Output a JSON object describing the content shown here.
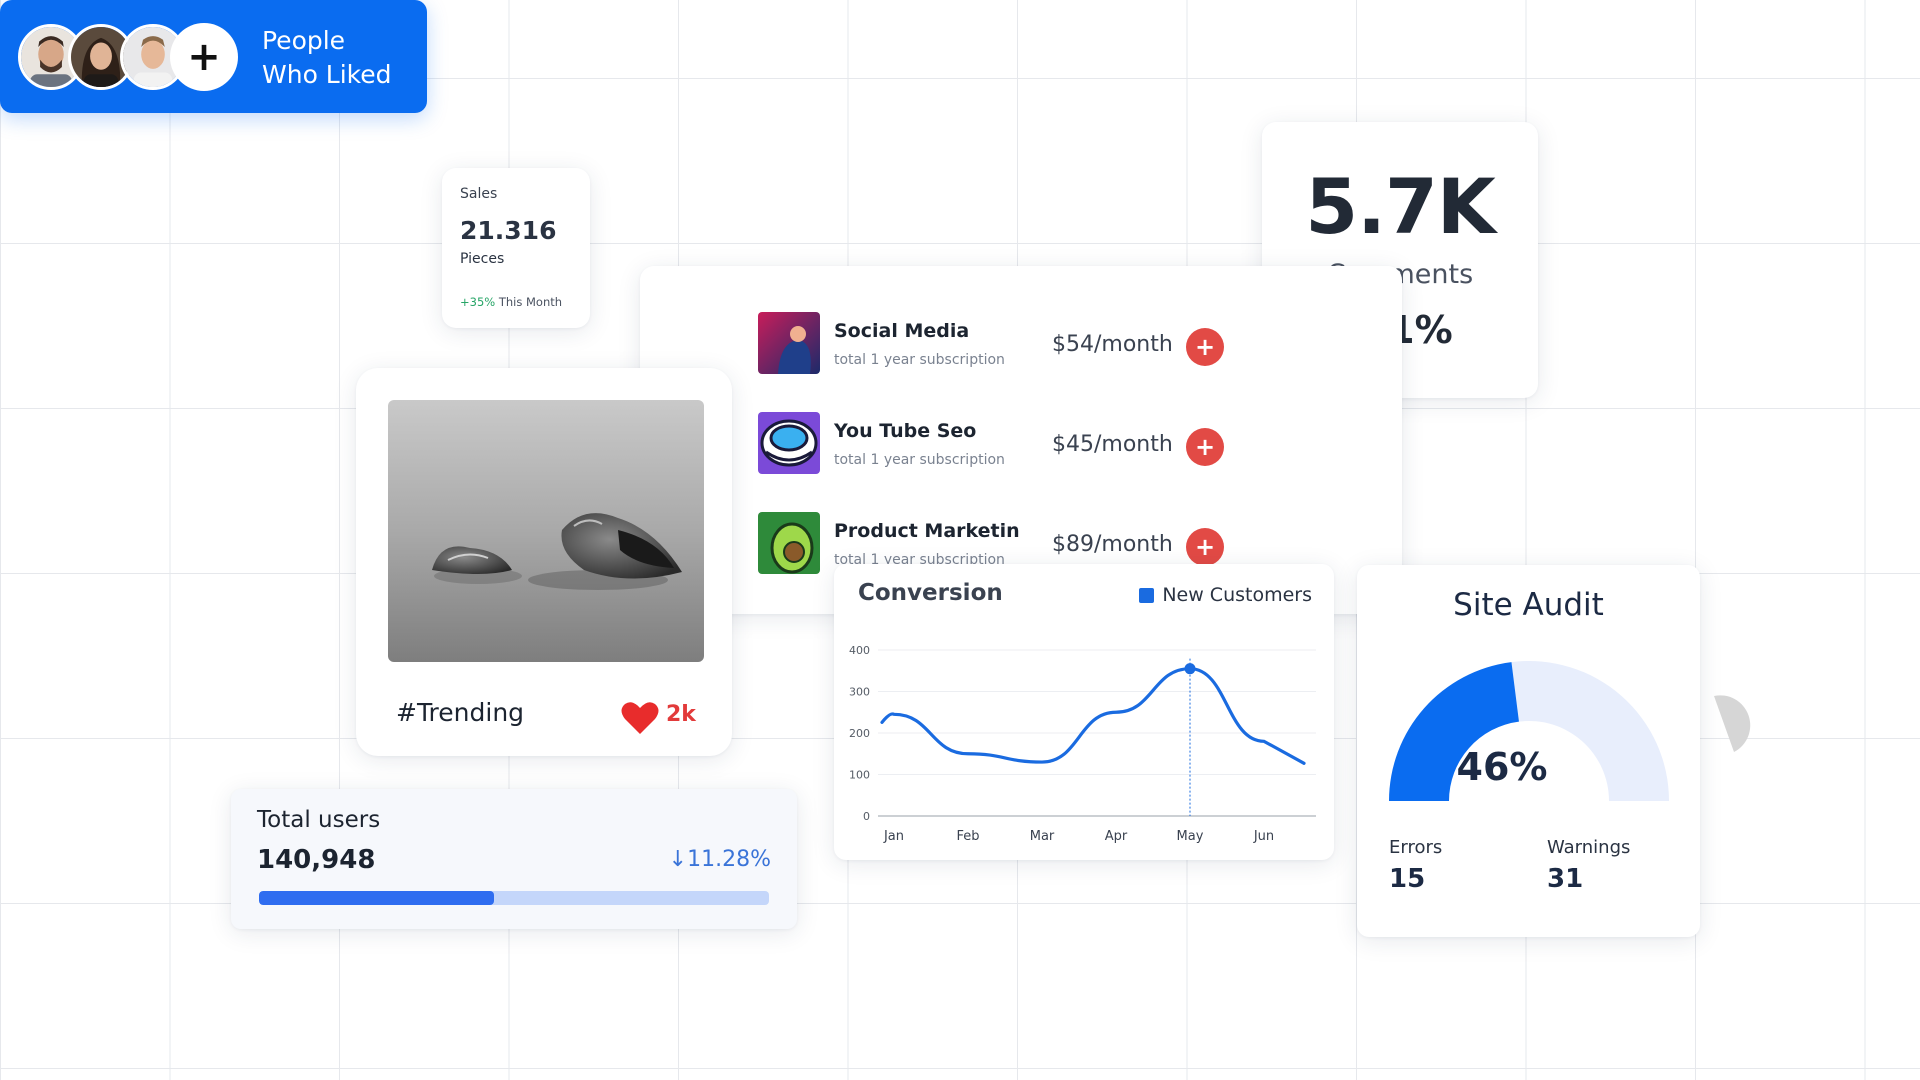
{
  "sales": {
    "label": "Sales",
    "value": "21.316",
    "unit": "Pieces",
    "change": "+35%",
    "period": "This Month"
  },
  "liked": {
    "line1": "People",
    "line2": "Who Liked",
    "plus": "+"
  },
  "comments": {
    "value": "5.7K",
    "label": "Comments",
    "percent": "8.1%"
  },
  "subscriptions": [
    {
      "title": "Social Media",
      "desc": "total 1 year subscription",
      "price": "$54/month",
      "icon": "social-media-thumbnail"
    },
    {
      "title": "You Tube Seo",
      "desc": "total 1 year subscription",
      "price": "$45/month",
      "icon": "youtube-seo-thumbnail"
    },
    {
      "title": "Product Marketin",
      "desc": "total 1 year subscription",
      "price": "$89/month",
      "icon": "product-marketing-thumbnail"
    }
  ],
  "add_symbol": "+",
  "trending": {
    "tag": "#Trending",
    "likes": "2k"
  },
  "users": {
    "label": "Total users",
    "value": "140,948",
    "change": "↓11.28%",
    "progress": 0.46
  },
  "chart_data": {
    "type": "line",
    "title": "Conversion",
    "categories": [
      "Jan",
      "Feb",
      "Mar",
      "Apr",
      "May",
      "Jun"
    ],
    "series": [
      {
        "name": "New Customers",
        "values": [
          245,
          150,
          130,
          250,
          355,
          180
        ]
      }
    ],
    "yticks": [
      0,
      100,
      200,
      300,
      400
    ],
    "ylim": [
      0,
      400
    ],
    "grid": true,
    "legend": "top-right",
    "highlight": {
      "category": "May",
      "value": 355
    },
    "color": "#1a6be0"
  },
  "audit": {
    "title": "Site Audit",
    "percent": "46%",
    "value": 0.46,
    "errors_label": "Errors",
    "errors": "15",
    "warnings_label": "Warnings",
    "warnings": "31"
  },
  "colors": {
    "primary": "#0a6cf0",
    "danger": "#e24a45",
    "success": "#27a567",
    "heart": "#e23a3a"
  }
}
